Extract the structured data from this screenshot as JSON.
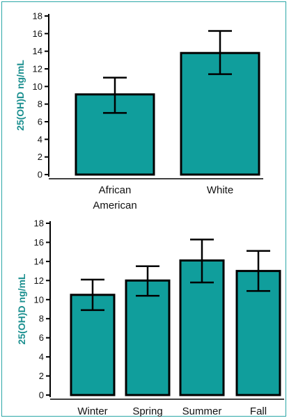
{
  "colors": {
    "bar": "#109e9c",
    "stroke": "#000000",
    "axis_title": "#1b8f8f",
    "frame": "#2aa6a6"
  },
  "chart_data": [
    {
      "type": "bar",
      "ylabel": "25(OH)D ng/mL",
      "ylim": [
        0,
        18
      ],
      "yticks": [
        0,
        2,
        4,
        6,
        8,
        10,
        12,
        14,
        16,
        18
      ],
      "categories": [
        "African\nAmerican",
        "White"
      ],
      "values": [
        9.1,
        13.8
      ],
      "error_low": [
        7.0,
        11.4
      ],
      "error_high": [
        11.0,
        16.3
      ],
      "grid": false
    },
    {
      "type": "bar",
      "ylabel": "25(OH)D ng/mL",
      "ylim": [
        0,
        18
      ],
      "yticks": [
        0,
        2,
        4,
        6,
        8,
        10,
        12,
        14,
        16,
        18
      ],
      "categories": [
        "Winter",
        "Spring",
        "Summer",
        "Fall"
      ],
      "values": [
        10.5,
        12.0,
        14.1,
        13.0
      ],
      "error_low": [
        8.9,
        10.4,
        11.8,
        10.9
      ],
      "error_high": [
        12.1,
        13.5,
        16.3,
        15.1
      ],
      "grid": false
    }
  ]
}
